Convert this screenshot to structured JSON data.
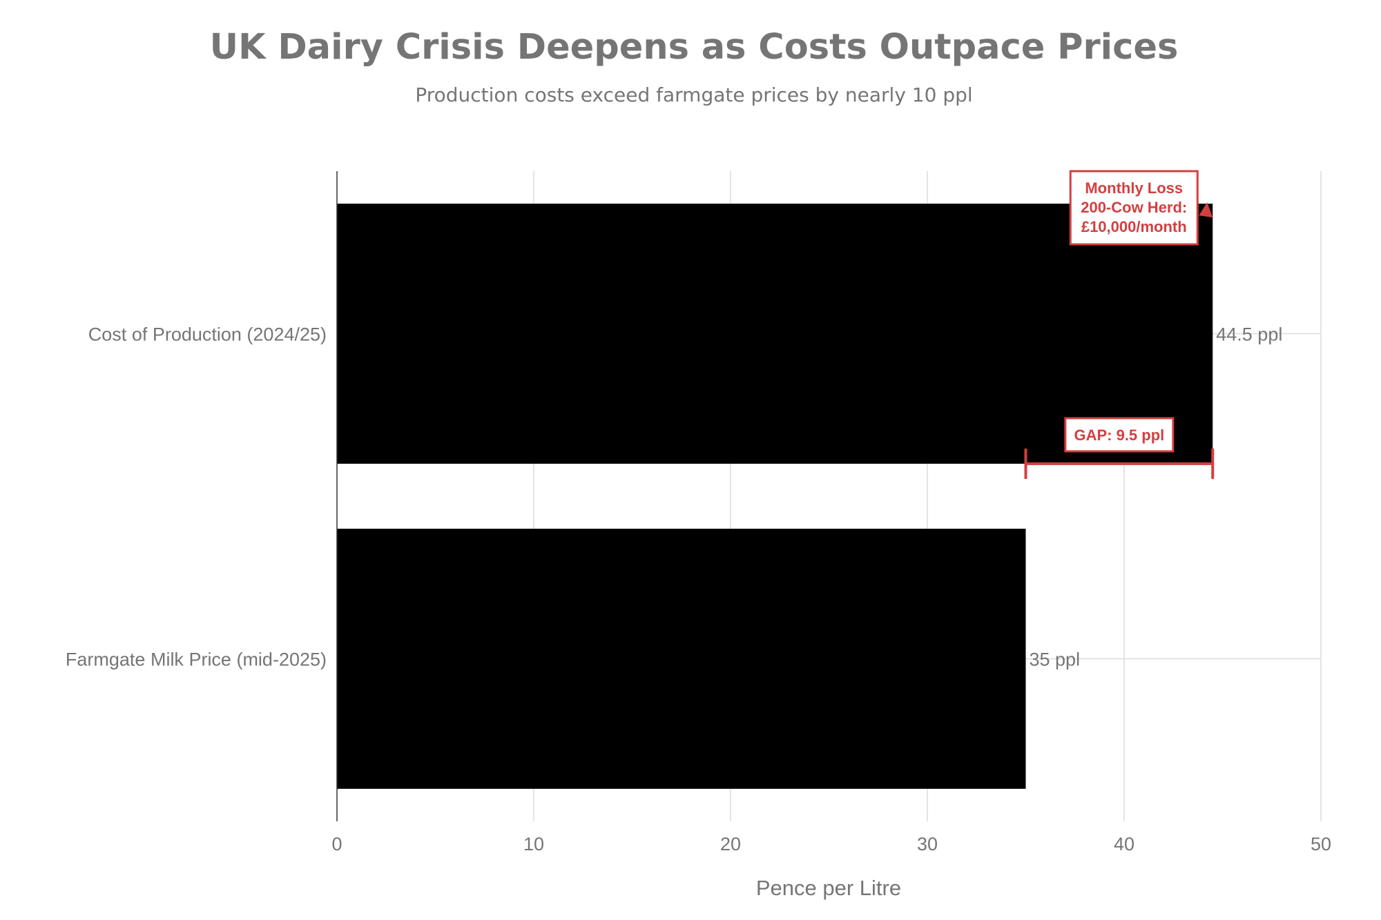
{
  "chart_data": {
    "type": "bar",
    "orientation": "horizontal",
    "title": "UK Dairy Crisis Deepens as Costs Outpace Prices",
    "subtitle": "Production costs exceed farmgate prices by nearly 10 ppl",
    "xlabel": "Pence per Litre",
    "ylabel": "",
    "xlim": [
      0,
      50
    ],
    "x_ticks": [
      "0",
      "10",
      "20",
      "30",
      "40",
      "50"
    ],
    "grid": true,
    "categories": [
      "Cost of Production (2024/25)",
      "Farmgate Milk Price (mid-2025)"
    ],
    "values": [
      44.5,
      35
    ],
    "value_labels": [
      "44.5 ppl",
      "35 ppl"
    ],
    "bar_color": "#000000",
    "annotations": {
      "monthly_loss": {
        "lines": [
          "Monthly Loss",
          "200-Cow Herd:",
          "£10,000/month"
        ],
        "points_to_value": 44.5,
        "color": "#d43f3f"
      },
      "gap": {
        "label": "GAP: 9.5 ppl",
        "from_value": 35,
        "to_value": 44.5,
        "color": "#d43f3f"
      }
    }
  }
}
